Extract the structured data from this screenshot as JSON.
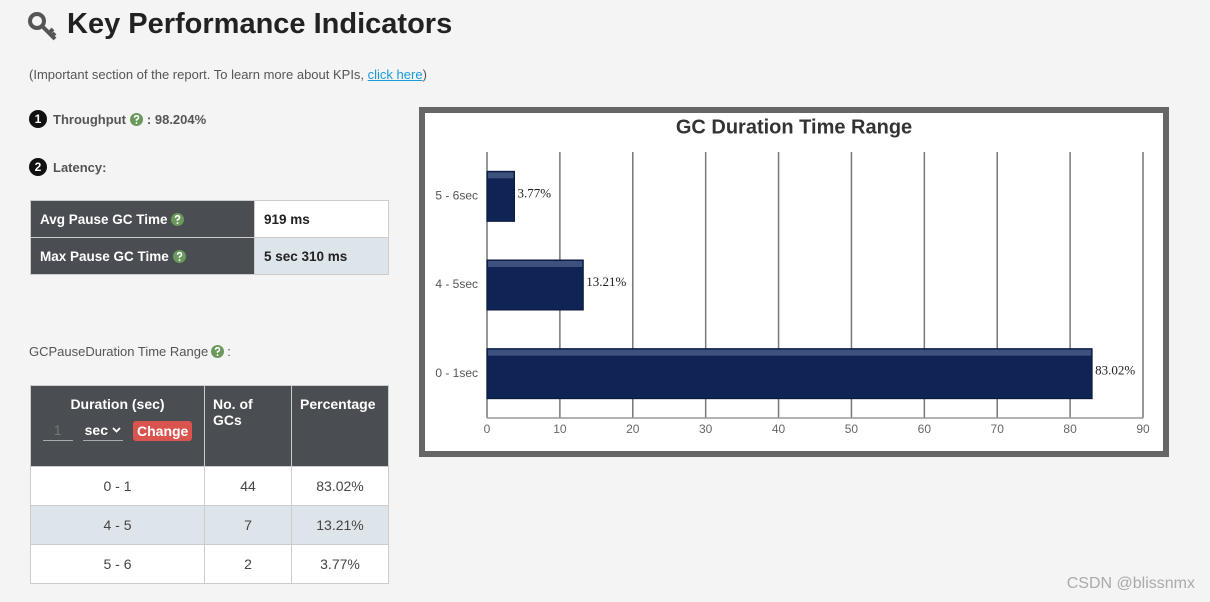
{
  "header": {
    "title": "Key Performance Indicators",
    "note_prefix": "(Important section of the report. To learn more about KPIs, ",
    "note_link": "click here",
    "note_suffix": ")"
  },
  "kpis": {
    "throughput_number": "1",
    "throughput_label": "Throughput",
    "throughput_value": ": 98.204%",
    "latency_number": "2",
    "latency_label": "Latency:"
  },
  "latency_table": {
    "rows": [
      [
        "Avg Pause GC Time",
        "919 ms"
      ],
      [
        "Max Pause GC Time",
        "5 sec 310 ms"
      ]
    ]
  },
  "range_section": {
    "label": "GCPauseDuration Time Range",
    "suffix": ":"
  },
  "range_table": {
    "headers": [
      "Duration (sec)",
      "No. of GCs",
      "Percentage"
    ],
    "input_value": "1",
    "unit_select": "sec",
    "button": "Change",
    "rows": [
      [
        "0 - 1",
        "44",
        "83.02%"
      ],
      [
        "4 - 5",
        "7",
        "13.21%"
      ],
      [
        "5 - 6",
        "2",
        "3.77%"
      ]
    ]
  },
  "chart_data": {
    "type": "bar",
    "orientation": "horizontal",
    "title": "GC Duration Time Range",
    "categories": [
      "0 - 1sec",
      "4 - 5sec",
      "5 - 6sec"
    ],
    "values": [
      83.02,
      13.21,
      3.77
    ],
    "value_labels": [
      "83.02%",
      "13.21%",
      "3.77%"
    ],
    "color": "#0f2455",
    "xlim": [
      0,
      90
    ],
    "xticks": [
      0,
      10,
      20,
      30,
      40,
      50,
      60,
      70,
      80,
      90
    ],
    "grid": true
  },
  "watermark": "CSDN @blissnmx"
}
